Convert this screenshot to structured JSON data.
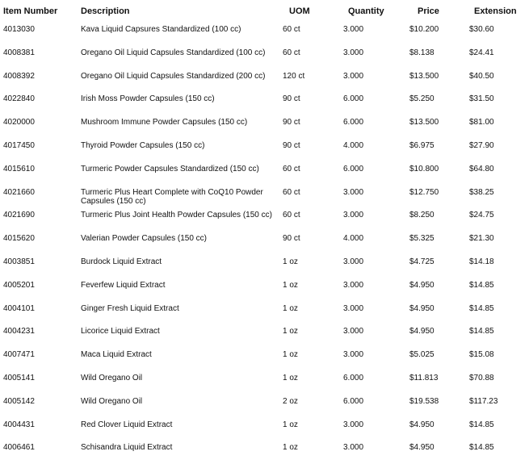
{
  "headers": [
    "Item Number",
    "Description",
    "UOM",
    "Quantity",
    "Price",
    "Extension"
  ],
  "rows": [
    {
      "item": "4013030",
      "desc": "Kava Liquid Capsures Standardized (100 cc)",
      "uom": "60 ct",
      "qty": "3.000",
      "price": "$10.200",
      "ext": "$30.60"
    },
    {
      "item": "4008381",
      "desc": "Oregano Oil Liquid Capsules Standardized (100 cc)",
      "uom": "60 ct",
      "qty": "3.000",
      "price": "$8.138",
      "ext": "$24.41"
    },
    {
      "item": "4008392",
      "desc": "Oregano Oil Liquid Capsules Standardized (200 cc)",
      "uom": "120 ct",
      "qty": "3.000",
      "price": "$13.500",
      "ext": "$40.50"
    },
    {
      "item": "4022840",
      "desc": "Irish Moss Powder Capsules (150 cc)",
      "uom": "90 ct",
      "qty": "6.000",
      "price": "$5.250",
      "ext": "$31.50"
    },
    {
      "item": "4020000",
      "desc": "Mushroom Immune Powder Capsules (150 cc)",
      "uom": "90 ct",
      "qty": "6.000",
      "price": "$13.500",
      "ext": "$81.00"
    },
    {
      "item": "4017450",
      "desc": "Thyroid Powder Capsules (150 cc)",
      "uom": "90 ct",
      "qty": "4.000",
      "price": "$6.975",
      "ext": "$27.90"
    },
    {
      "item": "4015610",
      "desc": "Turmeric Powder Capsules Standardized (150 cc)",
      "uom": "60 ct",
      "qty": "6.000",
      "price": "$10.800",
      "ext": "$64.80"
    },
    {
      "item": "4021660",
      "desc": "Turmeric Plus Heart Complete with CoQ10 Powder Capsules (150 cc)",
      "uom": "60 ct",
      "qty": "3.000",
      "price": "$12.750",
      "ext": "$38.25"
    },
    {
      "item": "4021690",
      "desc": "Turmeric Plus Joint Health Powder Capsules (150 cc)",
      "uom": "60 ct",
      "qty": "3.000",
      "price": "$8.250",
      "ext": "$24.75"
    },
    {
      "item": "4015620",
      "desc": "Valerian Powder Capsules (150 cc)",
      "uom": "90 ct",
      "qty": "4.000",
      "price": "$5.325",
      "ext": "$21.30"
    },
    {
      "item": "4003851",
      "desc": "Burdock Liquid Extract",
      "uom": "1 oz",
      "qty": "3.000",
      "price": "$4.725",
      "ext": "$14.18"
    },
    {
      "item": "4005201",
      "desc": "Feverfew Liquid Extract",
      "uom": "1 oz",
      "qty": "3.000",
      "price": "$4.950",
      "ext": "$14.85"
    },
    {
      "item": "4004101",
      "desc": "Ginger Fresh Liquid Extract",
      "uom": "1 oz",
      "qty": "3.000",
      "price": "$4.950",
      "ext": "$14.85"
    },
    {
      "item": "4004231",
      "desc": "Licorice Liquid Extract",
      "uom": "1 oz",
      "qty": "3.000",
      "price": "$4.950",
      "ext": "$14.85"
    },
    {
      "item": "4007471",
      "desc": "Maca Liquid Extract",
      "uom": "1 oz",
      "qty": "3.000",
      "price": "$5.025",
      "ext": "$15.08"
    },
    {
      "item": "4005141",
      "desc": "Wild Oregano Oil",
      "uom": "1 oz",
      "qty": "6.000",
      "price": "$11.813",
      "ext": "$70.88"
    },
    {
      "item": "4005142",
      "desc": "Wild Oregano Oil",
      "uom": "2 oz",
      "qty": "6.000",
      "price": "$19.538",
      "ext": "$117.23"
    },
    {
      "item": "4004431",
      "desc": "Red Clover Liquid Extract",
      "uom": "1 oz",
      "qty": "3.000",
      "price": "$4.950",
      "ext": "$14.85"
    },
    {
      "item": "4006461",
      "desc": "Schisandra Liquid Extract",
      "uom": "1 oz",
      "qty": "3.000",
      "price": "$4.950",
      "ext": "$14.85"
    }
  ]
}
